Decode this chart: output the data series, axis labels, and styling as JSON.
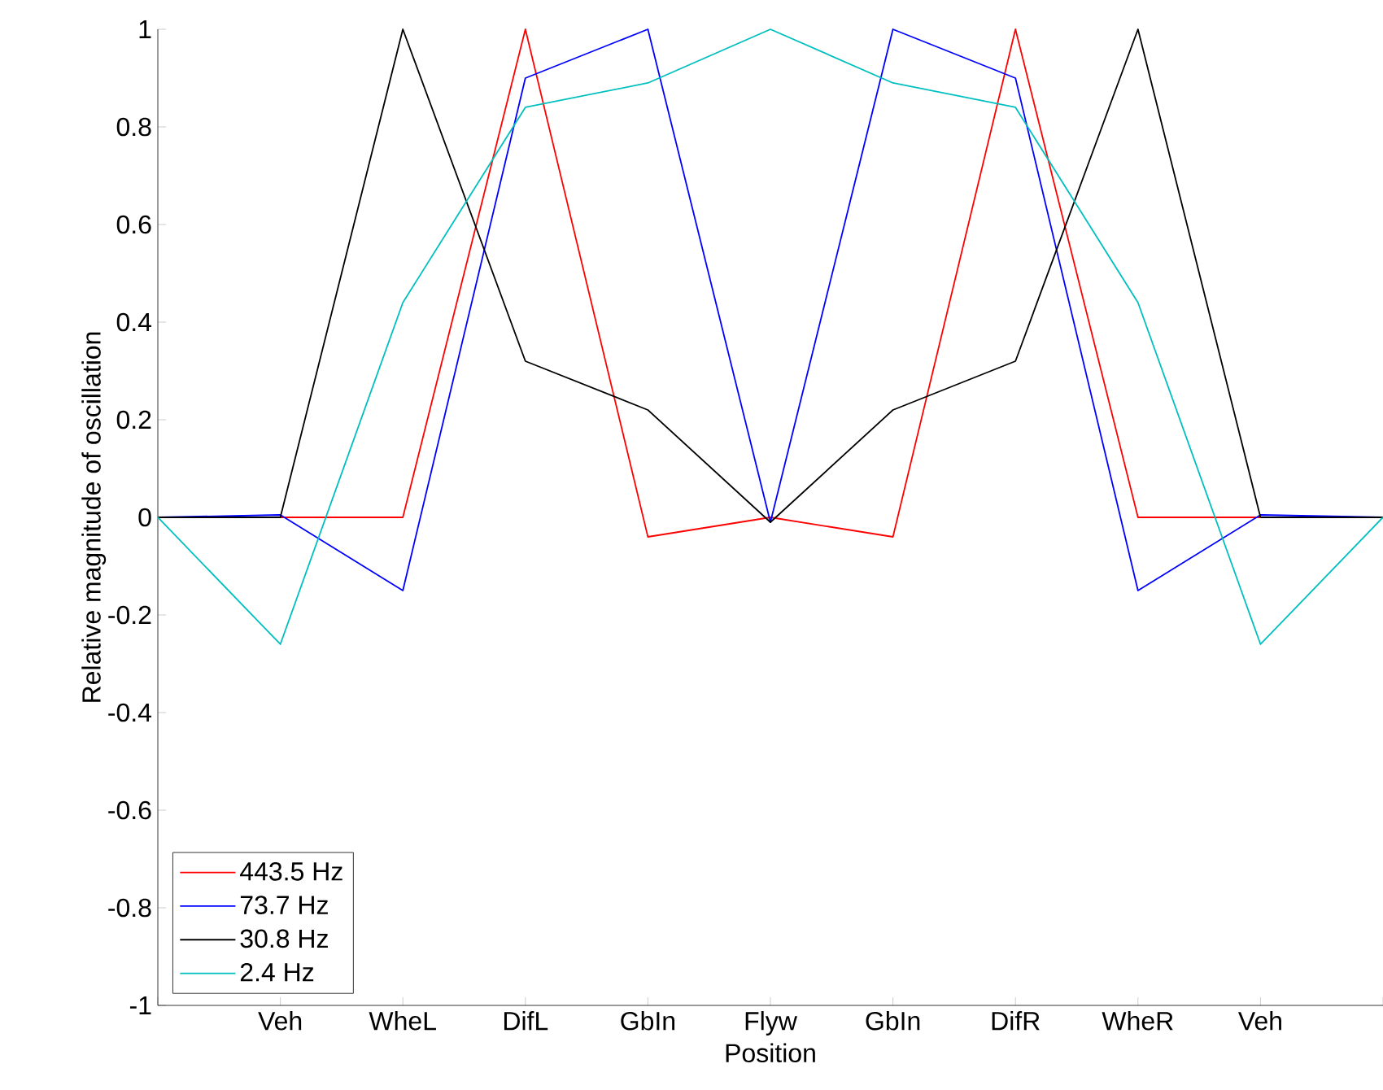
{
  "chart_data": {
    "type": "line",
    "xlabel": "Position",
    "ylabel": "Relative magnitude of oscillation",
    "categories": [
      null,
      "Veh",
      "WheL",
      "DifL",
      "GbIn",
      "Flyw",
      "GbIn",
      "DifR",
      "WheR",
      "Veh",
      null
    ],
    "series": [
      {
        "name": "443.5 Hz",
        "color": "#ff0000",
        "values": [
          0,
          0,
          0,
          1,
          -0.04,
          0,
          -0.04,
          1,
          0,
          0,
          0
        ]
      },
      {
        "name": "73.7 Hz",
        "color": "#0000ff",
        "values": [
          0,
          0.005,
          -0.15,
          0.9,
          1,
          -0.01,
          1,
          0.9,
          -0.15,
          0.005,
          0
        ]
      },
      {
        "name": "30.8 Hz",
        "color": "#000000",
        "values": [
          0,
          0,
          1,
          0.32,
          0.22,
          -0.01,
          0.22,
          0.32,
          1,
          0,
          0
        ]
      },
      {
        "name": "2.4 Hz",
        "color": "#00bfbf",
        "values": [
          0,
          -0.26,
          0.44,
          0.84,
          0.89,
          1,
          0.89,
          0.84,
          0.44,
          -0.26,
          0
        ]
      }
    ],
    "ylim": [
      -1,
      1
    ],
    "yticks": [
      -1,
      -0.8,
      -0.6,
      -0.4,
      -0.2,
      0,
      0.2,
      0.4,
      0.6,
      0.8,
      1
    ],
    "legend": "bottom left",
    "grid": false,
    "marker": "none",
    "line_style": "solid"
  }
}
